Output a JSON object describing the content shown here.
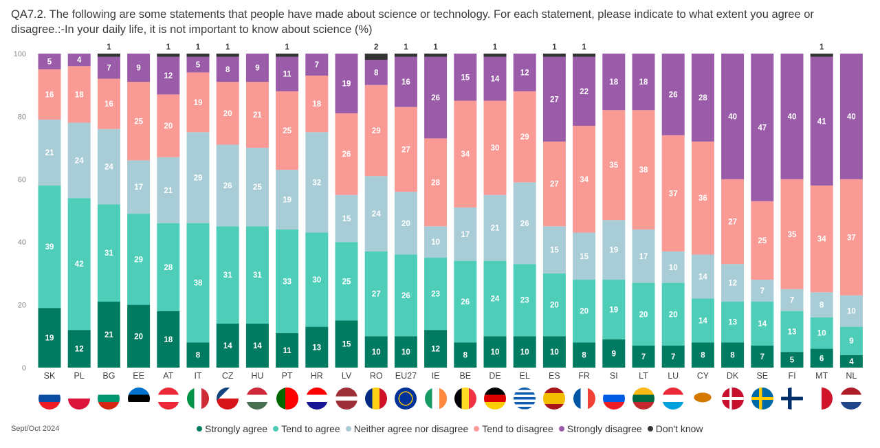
{
  "title": "QA7.2. The following are some statements that people have made about science or technology. For each statement, please indicate to what extent you agree or disagree.:-In your daily life, it is not important to know about science (%)",
  "footer_date": "Sept/Oct 2024",
  "chart_data": {
    "type": "bar",
    "stacked": true,
    "title": "QA7.2. The following are some statements that people have made about science or technology. For each statement, please indicate to what extent you agree or disagree.:-In your daily life, it is not important to know about science (%)",
    "xlabel": "",
    "ylabel": "",
    "ylim": [
      0,
      100
    ],
    "yticks": [
      0,
      20,
      40,
      60,
      80,
      100
    ],
    "grid": false,
    "legend_position": "bottom",
    "categories": [
      "SK",
      "PL",
      "BG",
      "EE",
      "AT",
      "IT",
      "CZ",
      "HU",
      "PT",
      "HR",
      "LV",
      "RO",
      "EU27",
      "IE",
      "BE",
      "DE",
      "EL",
      "ES",
      "FR",
      "SI",
      "LT",
      "LU",
      "CY",
      "DK",
      "SE",
      "FI",
      "MT",
      "NL"
    ],
    "series": [
      {
        "name": "Strongly agree",
        "color": "#007b61",
        "values": [
          19,
          12,
          21,
          20,
          18,
          8,
          14,
          14,
          11,
          13,
          15,
          10,
          10,
          12,
          8,
          10,
          10,
          10,
          8,
          9,
          7,
          7,
          8,
          8,
          7,
          5,
          6,
          4
        ]
      },
      {
        "name": "Tend to agree",
        "color": "#4ecdb9",
        "values": [
          39,
          42,
          31,
          29,
          28,
          38,
          31,
          31,
          33,
          30,
          25,
          27,
          26,
          23,
          26,
          24,
          23,
          20,
          20,
          19,
          20,
          20,
          14,
          13,
          14,
          13,
          10,
          9
        ]
      },
      {
        "name": "Neither agree nor disagree",
        "color": "#a8cdd6",
        "values": [
          21,
          24,
          24,
          17,
          21,
          29,
          26,
          25,
          19,
          32,
          15,
          24,
          20,
          10,
          17,
          21,
          26,
          15,
          15,
          19,
          17,
          10,
          14,
          12,
          7,
          7,
          8,
          10
        ]
      },
      {
        "name": "Tend to disagree",
        "color": "#f99a95",
        "values": [
          16,
          18,
          16,
          25,
          20,
          19,
          20,
          21,
          25,
          18,
          26,
          29,
          27,
          28,
          34,
          30,
          29,
          27,
          34,
          35,
          38,
          37,
          36,
          27,
          25,
          35,
          34,
          37
        ]
      },
      {
        "name": "Strongly disagree",
        "color": "#9a5ba8",
        "values": [
          5,
          4,
          7,
          9,
          12,
          5,
          8,
          9,
          11,
          7,
          19,
          8,
          16,
          26,
          15,
          14,
          12,
          27,
          22,
          18,
          18,
          26,
          28,
          40,
          47,
          40,
          41,
          40
        ]
      },
      {
        "name": "Don't know",
        "color": "#333333",
        "values": [
          0,
          0,
          1,
          0,
          1,
          1,
          1,
          0,
          1,
          0,
          0,
          2,
          1,
          1,
          0,
          1,
          0,
          1,
          1,
          0,
          0,
          0,
          0,
          0,
          0,
          0,
          1,
          0
        ]
      }
    ]
  }
}
